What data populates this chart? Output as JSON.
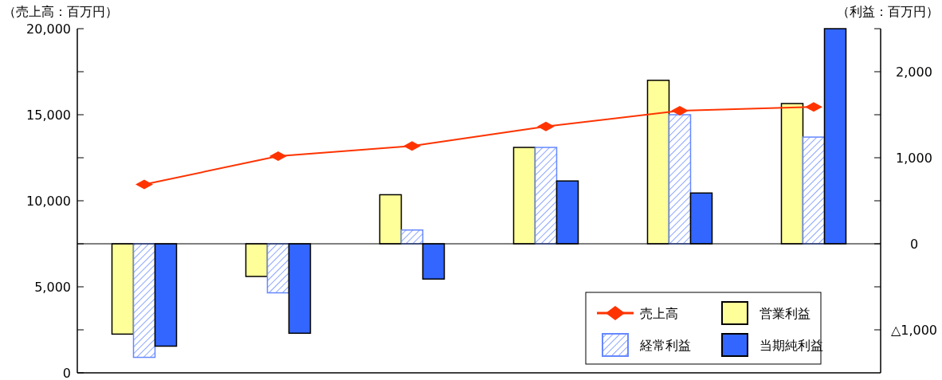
{
  "chart_data": {
    "type": "bar",
    "ylabel": "（売上高：百万円）",
    "y2label": "（利益：百万円）",
    "categories": [
      null,
      null,
      null,
      null,
      null,
      null
    ],
    "series": [
      {
        "name": "売上高",
        "type": "line",
        "color": "#ff3300",
        "values": [
          10950,
          12590,
          13180,
          14320,
          15230,
          15450
        ]
      },
      {
        "name": "営業利益",
        "axis": "y2",
        "color": "#ffff99",
        "values": [
          -1050,
          -380,
          570,
          1120,
          1900,
          1630
        ]
      },
      {
        "name": "経常利益",
        "axis": "y2",
        "color": "#6688ff",
        "values": [
          -1320,
          -570,
          160,
          1120,
          1500,
          1240
        ]
      },
      {
        "name": "当期純利益",
        "axis": "y2",
        "color": "#3366ff",
        "values": [
          -1190,
          -1040,
          -410,
          730,
          590,
          2500
        ]
      }
    ],
    "ylim": [
      0,
      20000
    ],
    "yticks": [
      0,
      {
        "value": 2500,
        "label": null
      },
      {
        "value": 5000,
        "label": "5,000"
      },
      {
        "value": 7500,
        "label": null
      },
      {
        "value": 10000,
        "label": "10,000"
      },
      {
        "value": 12500,
        "label": null
      },
      {
        "value": 15000,
        "label": "15,000"
      },
      {
        "value": 17500,
        "label": null
      },
      {
        "value": 20000,
        "label": "20,000"
      }
    ],
    "y2lim": [
      -1500,
      2500
    ],
    "y2ticks": [
      {
        "value": -1000,
        "label": "△1,000"
      },
      {
        "value": -500,
        "label": null
      },
      0,
      {
        "value": 500,
        "label": null
      },
      {
        "value": 1000,
        "label": "1,000"
      },
      {
        "value": 1500,
        "label": null
      },
      {
        "value": 2000,
        "label": "2,000"
      },
      {
        "value": 2500,
        "label": null
      }
    ],
    "marker": "diamond",
    "legend": "bottom right"
  }
}
